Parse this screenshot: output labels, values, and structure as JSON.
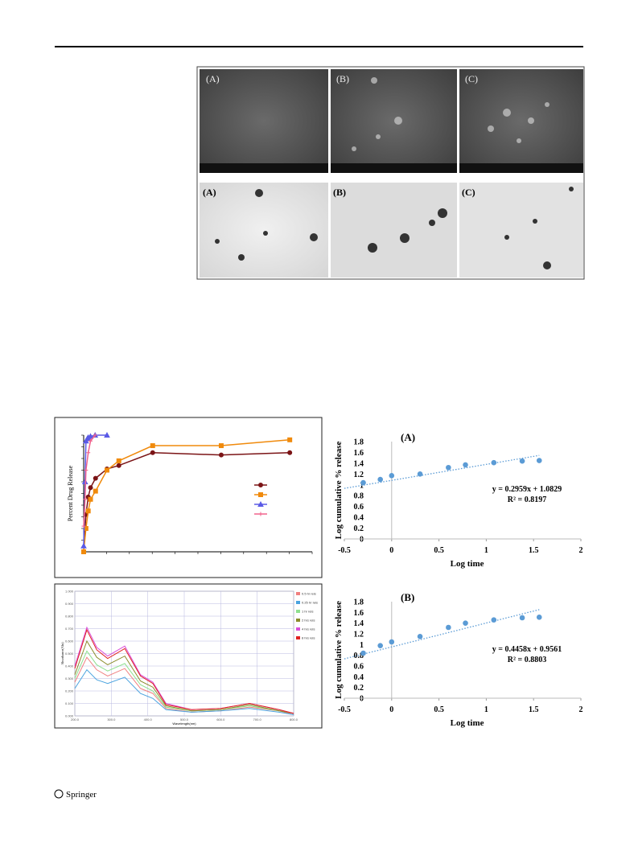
{
  "micrographs": {
    "sem_labels": [
      "(A)",
      "(B)",
      "(C)"
    ],
    "tem_labels": [
      "(A)",
      "(B)",
      "(C)"
    ]
  },
  "chart_data": [
    {
      "type": "line",
      "y_label": "Percent Drug Release",
      "xlim": [
        0,
        50
      ],
      "ylim": [
        0,
        100
      ],
      "series": [
        {
          "color": "#7b1416",
          "marker": "circle",
          "x": [
            0,
            0.5,
            1,
            1.5,
            2.6,
            5.1,
            7.7,
            15.1,
            30.1,
            45.1
          ],
          "values": [
            0,
            32,
            47,
            55,
            63,
            71,
            74,
            85,
            83,
            85
          ]
        },
        {
          "color": "#f08a0c",
          "marker": "square",
          "x": [
            0,
            0.5,
            1,
            1.5,
            2.6,
            5.1,
            7.7,
            15.1,
            30.1,
            45.1
          ],
          "values": [
            0,
            20,
            35,
            45,
            52,
            70,
            78,
            91,
            91,
            96
          ]
        },
        {
          "color": "#5a5ae6",
          "marker": "triangle",
          "x": [
            0,
            0.3,
            0.5,
            0.8,
            1,
            1.5,
            2.5,
            5.1
          ],
          "values": [
            5,
            60,
            95,
            97,
            98,
            99,
            100,
            100
          ]
        },
        {
          "color": "#f0628c",
          "marker": "cross",
          "x": [
            0,
            0.3,
            0.5,
            1,
            1.5,
            2.5
          ],
          "values": [
            22,
            45,
            70,
            85,
            95,
            100
          ]
        }
      ]
    },
    {
      "type": "line",
      "x_label": "Wavelength(nm)",
      "y_label": "Absorbance(Abs)",
      "grid": true,
      "xlim": [
        200,
        800
      ],
      "ylim": [
        0,
        1
      ],
      "xticks": [
        {
          "value": 200,
          "label": "200.0"
        },
        {
          "value": 300,
          "label": "300.0"
        },
        {
          "value": 400,
          "label": "400.0"
        },
        {
          "value": 500,
          "label": "500.0"
        },
        {
          "value": 600,
          "label": "600.0"
        },
        {
          "value": 700,
          "label": "700.0"
        },
        {
          "value": 800,
          "label": "800.0"
        }
      ],
      "yticks": [
        {
          "value": 0,
          "label": "0.000"
        },
        {
          "value": 0.1,
          "label": "0.100"
        },
        {
          "value": 0.2,
          "label": "0.200"
        },
        {
          "value": 0.3,
          "label": "0.300"
        },
        {
          "value": 0.4,
          "label": "0.400"
        },
        {
          "value": 0.5,
          "label": "0.500"
        },
        {
          "value": 0.6,
          "label": "0.600"
        },
        {
          "value": 0.7,
          "label": "0.700"
        },
        {
          "value": 0.8,
          "label": "0.800"
        },
        {
          "value": 0.9,
          "label": "0.900"
        },
        {
          "value": 1,
          "label": "1.000"
        }
      ],
      "x": [
        200,
        233,
        260,
        290,
        337,
        380,
        414,
        450,
        520,
        600,
        679,
        760,
        800
      ],
      "series": [
        {
          "name": "0.5 hr rels",
          "color": "#f08080",
          "values": [
            0.27,
            0.47,
            0.37,
            0.32,
            0.38,
            0.22,
            0.18,
            0.06,
            0.03,
            0.04,
            0.07,
            0.04,
            0.01
          ]
        },
        {
          "name": "0.25 hr rels",
          "color": "#4aa3df",
          "values": [
            0.22,
            0.37,
            0.29,
            0.26,
            0.31,
            0.18,
            0.14,
            0.05,
            0.03,
            0.04,
            0.06,
            0.03,
            0.01
          ]
        },
        {
          "name": "1 hr rels",
          "color": "#8fe08f",
          "values": [
            0.3,
            0.52,
            0.41,
            0.36,
            0.42,
            0.25,
            0.2,
            0.07,
            0.04,
            0.05,
            0.08,
            0.04,
            0.02
          ]
        },
        {
          "name": "2 hrs rels",
          "color": "#8b8b2a",
          "values": [
            0.33,
            0.6,
            0.47,
            0.41,
            0.48,
            0.28,
            0.23,
            0.08,
            0.04,
            0.05,
            0.09,
            0.04,
            0.02
          ]
        },
        {
          "name": "4 hrs rels",
          "color": "#d94fd9",
          "values": [
            0.4,
            0.71,
            0.55,
            0.48,
            0.56,
            0.33,
            0.27,
            0.1,
            0.05,
            0.06,
            0.1,
            0.05,
            0.02
          ]
        },
        {
          "name": "8 hrs rels",
          "color": "#e02020",
          "values": [
            0.38,
            0.69,
            0.53,
            0.46,
            0.54,
            0.32,
            0.26,
            0.09,
            0.05,
            0.06,
            0.1,
            0.05,
            0.02
          ]
        }
      ]
    },
    {
      "type": "scatter",
      "panel": "(A)",
      "x_label": "Log time",
      "y_label": "Log cumulative % release",
      "xlim": [
        -0.5,
        2
      ],
      "ylim": [
        0,
        1.8
      ],
      "xticks": [
        -0.5,
        0,
        0.5,
        1,
        1.5,
        2
      ],
      "yticks": [
        0,
        0.2,
        0.4,
        0.6,
        0.8,
        1,
        1.2,
        1.4,
        1.6,
        1.8
      ],
      "color": "#5b9bd5",
      "x": [
        -0.3,
        -0.12,
        0,
        0.3,
        0.6,
        0.78,
        1.08,
        1.38,
        1.56
      ],
      "values": [
        1.04,
        1.1,
        1.17,
        1.2,
        1.32,
        1.37,
        1.41,
        1.44,
        1.45
      ],
      "trendline": {
        "slope": 0.2959,
        "intercept": 1.0829,
        "equation": "y = 0.2959x + 1.0829",
        "r2": "R² = 0.8197"
      }
    },
    {
      "type": "scatter",
      "panel": "(B)",
      "x_label": "Log time",
      "y_label": "Log cumulative % release",
      "xlim": [
        -0.5,
        2
      ],
      "ylim": [
        0,
        1.8
      ],
      "xticks": [
        -0.5,
        0,
        0.5,
        1,
        1.5,
        2
      ],
      "yticks": [
        0,
        0.2,
        0.4,
        0.6,
        0.8,
        1,
        1.2,
        1.4,
        1.6,
        1.8
      ],
      "color": "#5b9bd5",
      "x": [
        -0.3,
        -0.12,
        0,
        0.3,
        0.6,
        0.78,
        1.08,
        1.38,
        1.56
      ],
      "values": [
        0.84,
        0.98,
        1.05,
        1.15,
        1.32,
        1.4,
        1.46,
        1.5,
        1.51
      ],
      "trendline": {
        "slope": 0.4458,
        "intercept": 0.9561,
        "equation": "y = 0.4458x + 0.9561",
        "r2": "R² = 0.8803"
      }
    }
  ],
  "footer": {
    "publisher": "Springer"
  }
}
